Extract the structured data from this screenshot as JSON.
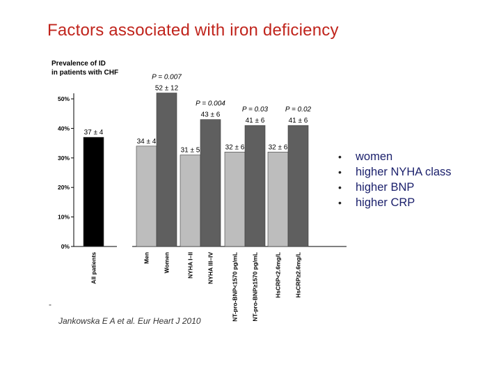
{
  "title": "Factors associated with iron deficiency",
  "bullets": [
    "women",
    "higher NYHA class",
    "higher BNP",
    "higher CRP"
  ],
  "citation": "Jankowska E A et al. Eur Heart J 2010",
  "colors": {
    "title": "#c0241c",
    "bullet_text": "#1a1f6b",
    "bar_all": "#000000",
    "bar_light": "#bdbdbd",
    "bar_dark": "#5f5f5f"
  },
  "chart_data": {
    "type": "bar",
    "title": "Prevalence of ID in patients with CHF",
    "title_lines": [
      "Prevalence of ID",
      "in patients with CHF"
    ],
    "ylabel": "Prevalence of ID",
    "ylim": [
      0,
      50
    ],
    "yticks": [
      "0%",
      "10%",
      "20%",
      "30%",
      "40%",
      "50%"
    ],
    "categories": [
      "All patients",
      "Men",
      "Women",
      "NYHA I–II",
      "NYHA III–IV",
      "NT-pro-BNP<1570 pg/mL",
      "NT-pro-BNP≥1570 pg/mL",
      "HsCRP<2.6mg/L",
      "HsCRP≥2.6mg/L"
    ],
    "values": [
      37,
      34,
      52,
      31,
      43,
      32,
      41,
      32,
      41
    ],
    "value_labels": [
      "37 ± 4",
      "34 ± 4",
      "52 ± 12",
      "31 ± 5",
      "43 ± 6",
      "32 ± 6",
      "41 ± 6",
      "32 ± 6",
      "41 ± 6"
    ],
    "bar_styles": [
      "all",
      "light",
      "dark",
      "light",
      "dark",
      "light",
      "dark",
      "light",
      "dark"
    ],
    "p_values": [
      {
        "label": "P = 0.007",
        "group": 0
      },
      {
        "label": "P = 0.004",
        "group": 1
      },
      {
        "label": "P = 0.03",
        "group": 2
      },
      {
        "label": "P = 0.02",
        "group": 3
      }
    ],
    "grid": false
  }
}
